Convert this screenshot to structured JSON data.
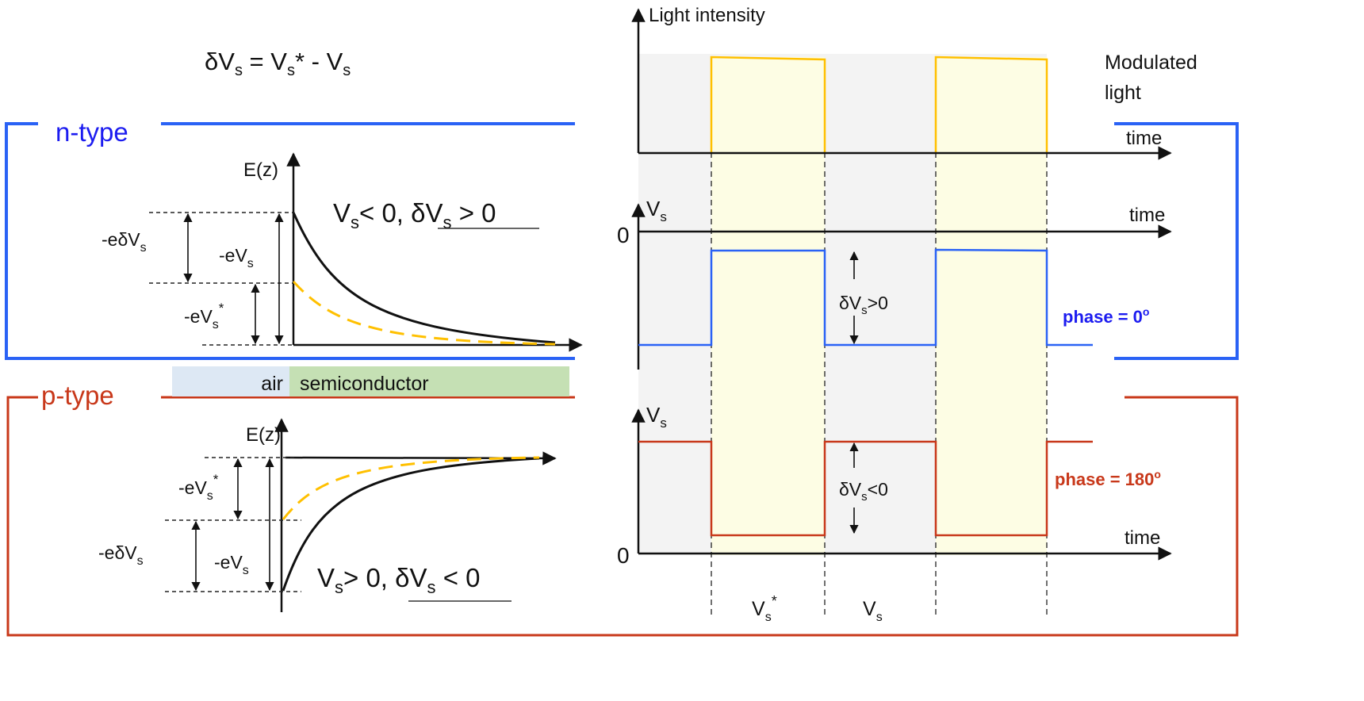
{
  "formula": {
    "a": "δV",
    "a_sub": "s",
    "b": " = V",
    "b_sub": "s",
    "c": "* - V",
    "c_sub": "s"
  },
  "colors": {
    "n_type": "#2a62f5",
    "n_type_text": "#1c1cf0",
    "p_type": "#c8381a",
    "light": "#ffc000",
    "light_fill": "#fdfde4",
    "background_shade": "#f3f3f3",
    "air": "#dde8f4",
    "semiconductor": "#c5e0b4"
  },
  "n_type": {
    "title": "n-type",
    "axis_label": "E(z)",
    "condition": {
      "a": "V",
      "a_sub": "s",
      "b": "< 0, ",
      "c": "δV",
      "c_sub": "s",
      "d": " > 0"
    },
    "labels": {
      "e_delta_vs": {
        "main": "-eδV",
        "sub": "s"
      },
      "e_vs": {
        "main": "-eV",
        "sub": "s"
      },
      "e_vs_star": {
        "main": "-eV",
        "sub": "s",
        "sup": "*"
      }
    }
  },
  "materials": {
    "air": "air",
    "semiconductor": "semiconductor"
  },
  "p_type": {
    "title": "p-type",
    "axis_label": "E(z)",
    "condition": {
      "a": "V",
      "a_sub": "s",
      "b": "> 0, ",
      "c": "δV",
      "c_sub": "s",
      "d": " < 0"
    },
    "labels": {
      "e_vs_star": {
        "main": "-eV",
        "sub": "s",
        "sup": "*"
      },
      "e_delta_vs": {
        "main": "-eδV",
        "sub": "s"
      },
      "e_vs": {
        "main": "-eV",
        "sub": "s"
      }
    }
  },
  "light_panel": {
    "y_label": "Light intensity",
    "x_label": "time",
    "legend": [
      "Modulated",
      "light"
    ]
  },
  "n_panel": {
    "y_label": "V",
    "y_sub": "s",
    "zero": "0",
    "x_label": "time",
    "delta": {
      "main": "δV",
      "sub": "s",
      "rest": ">0"
    },
    "phase": "phase = 0",
    "phase_sup": "o"
  },
  "p_panel": {
    "y_label": "V",
    "y_sub": "s",
    "zero": "0",
    "x_label": "time",
    "delta": {
      "main": "δV",
      "sub": "s",
      "rest": "<0"
    },
    "phase": "phase = 180",
    "phase_sup": "o"
  },
  "period_labels": {
    "illuminated": {
      "main": "V",
      "sub": "s",
      "sup": "*"
    },
    "dark": {
      "main": "V",
      "sub": "s"
    }
  }
}
